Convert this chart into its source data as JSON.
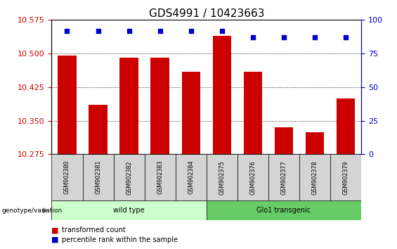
{
  "title": "GDS4991 / 10423663",
  "samples": [
    "GSM902380",
    "GSM902381",
    "GSM902382",
    "GSM902383",
    "GSM902384",
    "GSM902375",
    "GSM902376",
    "GSM902377",
    "GSM902378",
    "GSM902379"
  ],
  "bar_values": [
    10.495,
    10.385,
    10.49,
    10.49,
    10.46,
    10.54,
    10.46,
    10.335,
    10.325,
    10.4
  ],
  "percentile_values": [
    92,
    92,
    92,
    92,
    92,
    92,
    87,
    87,
    87,
    87
  ],
  "ylim_left": [
    10.275,
    10.575
  ],
  "yticks_left": [
    10.275,
    10.35,
    10.425,
    10.5,
    10.575
  ],
  "yticks_right": [
    0,
    25,
    50,
    75,
    100
  ],
  "ylim_right": [
    0,
    100
  ],
  "bar_color": "#cc0000",
  "dot_color": "#0000cc",
  "group1_label": "wild type",
  "group2_label": "Glo1 transgenic",
  "group1_indices": [
    0,
    1,
    2,
    3,
    4
  ],
  "group2_indices": [
    5,
    6,
    7,
    8,
    9
  ],
  "group1_color": "#ccffcc",
  "group2_color": "#66cc66",
  "label_genotype": "genotype/variation",
  "legend_bar": "transformed count",
  "legend_dot": "percentile rank within the sample",
  "title_fontsize": 11,
  "axis_label_color_left": "#cc0000",
  "axis_label_color_right": "#0000cc",
  "tick_label_fontsize": 8,
  "bar_width": 0.6,
  "background_color": "#ffffff",
  "xticklabel_box_color": "#d4d4d4",
  "genotype_arrow_color": "#555555"
}
